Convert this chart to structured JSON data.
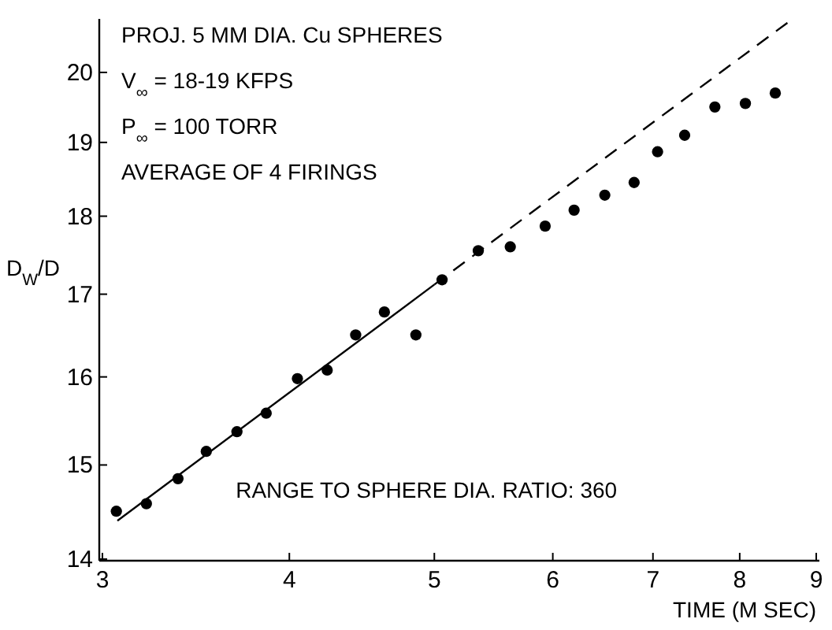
{
  "chart_data": {
    "type": "scatter",
    "xlabel": "TIME (M SEC)",
    "ylabel": "D$_{W}$/D",
    "log": "xy",
    "xlim": [
      3,
      9
    ],
    "ylim": [
      14,
      20.8
    ],
    "xticks": [
      3,
      4,
      5,
      6,
      7,
      8,
      9
    ],
    "yticks": [
      14,
      15,
      16,
      17,
      18,
      19,
      20
    ],
    "grid": false,
    "marker": "circle",
    "annotations": [
      "PROJ. 5 MM DIA. Cu SPHERES",
      "V$_{∞}$ = 18-19 KFPS",
      "P$_{∞}$ = 100 TORR",
      "AVERAGE OF 4 FIRINGS",
      "RANGE TO SPHERE DIA. RATIO: 360"
    ],
    "series": [
      {
        "color": "#000000",
        "x": [
          3.065,
          3.21,
          3.37,
          3.52,
          3.69,
          3.86,
          4.05,
          4.24,
          4.43,
          4.63,
          4.86,
          5.06,
          5.35,
          5.62,
          5.93,
          6.2,
          6.5,
          6.8,
          7.05,
          7.35,
          7.7,
          8.07,
          8.45
        ],
        "values": [
          14.5,
          14.58,
          14.85,
          15.15,
          15.37,
          15.58,
          15.98,
          16.08,
          16.5,
          16.78,
          16.5,
          17.18,
          17.55,
          17.6,
          17.87,
          18.08,
          18.28,
          18.45,
          18.87,
          19.1,
          19.5,
          19.55,
          19.7
        ]
      },
      {
        "type": "line",
        "color": "#000000",
        "line_style": "solid",
        "marker": "none",
        "x": [
          3.07,
          5.0
        ],
        "values": [
          14.4,
          17.12
        ]
      },
      {
        "type": "line",
        "color": "#000000",
        "line_style": "dashed",
        "marker": "none",
        "x": [
          5.0,
          8.62
        ],
        "values": [
          17.12,
          20.75
        ]
      }
    ]
  }
}
